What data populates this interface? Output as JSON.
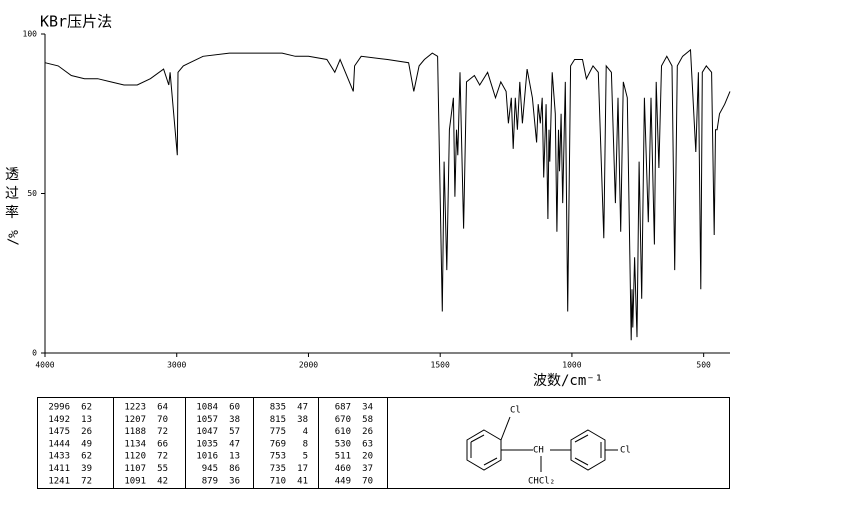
{
  "chart_data": {
    "type": "line",
    "title": "KBr压片法",
    "ylabel_chars": [
      "透",
      "过",
      "率"
    ],
    "ylabel_unit": "%/",
    "xlabel": "波数/cm⁻¹",
    "xlim": [
      4000,
      400
    ],
    "x_scale_break": 2000,
    "ylim": [
      0,
      100
    ],
    "xticks": [
      4000,
      3000,
      2000,
      1500,
      1000,
      500
    ],
    "yticks": [
      0,
      50,
      100
    ],
    "color": "#000000",
    "x": [
      4000,
      3900,
      3800,
      3700,
      3600,
      3500,
      3400,
      3300,
      3200,
      3100,
      3060,
      3050,
      2996,
      2990,
      2950,
      2900,
      2800,
      2600,
      2400,
      2200,
      2100,
      2000,
      1930,
      1900,
      1880,
      1830,
      1825,
      1800,
      1700,
      1620,
      1600,
      1580,
      1560,
      1530,
      1510,
      1492,
      1485,
      1475,
      1465,
      1450,
      1444,
      1438,
      1433,
      1425,
      1411,
      1400,
      1370,
      1350,
      1320,
      1290,
      1270,
      1250,
      1241,
      1230,
      1223,
      1215,
      1207,
      1198,
      1188,
      1170,
      1150,
      1134,
      1128,
      1120,
      1113,
      1107,
      1098,
      1091,
      1087,
      1084,
      1075,
      1063,
      1057,
      1051,
      1047,
      1041,
      1035,
      1025,
      1016,
      1005,
      990,
      960,
      945,
      920,
      900,
      879,
      870,
      850,
      835,
      825,
      815,
      805,
      790,
      775,
      772,
      769,
      762,
      753,
      745,
      735,
      725,
      710,
      700,
      687,
      680,
      670,
      660,
      640,
      620,
      610,
      600,
      580,
      550,
      530,
      520,
      511,
      505,
      490,
      470,
      460,
      455,
      449,
      440,
      420,
      400
    ],
    "values": [
      91,
      90,
      87,
      86,
      86,
      85,
      84,
      84,
      86,
      89,
      84,
      88,
      62,
      88,
      90,
      91,
      93,
      94,
      94,
      94,
      93,
      93,
      92,
      88,
      92,
      82,
      90,
      93,
      92,
      91,
      82,
      90,
      92,
      94,
      93,
      13,
      60,
      26,
      70,
      80,
      49,
      70,
      62,
      88,
      39,
      85,
      87,
      84,
      88,
      80,
      85,
      82,
      72,
      80,
      64,
      80,
      70,
      85,
      72,
      89,
      80,
      66,
      78,
      72,
      80,
      55,
      78,
      42,
      70,
      60,
      88,
      75,
      38,
      70,
      57,
      75,
      47,
      85,
      13,
      90,
      92,
      92,
      86,
      90,
      88,
      36,
      90,
      88,
      47,
      80,
      38,
      85,
      80,
      4,
      20,
      8,
      30,
      5,
      60,
      17,
      80,
      41,
      80,
      34,
      85,
      58,
      90,
      93,
      90,
      26,
      90,
      93,
      95,
      63,
      88,
      20,
      88,
      90,
      88,
      37,
      70,
      70,
      75,
      78,
      82
    ]
  },
  "peak_table": [
    [
      [
        2996,
        62
      ],
      [
        1492,
        13
      ],
      [
        1475,
        26
      ],
      [
        1444,
        49
      ],
      [
        1433,
        62
      ],
      [
        1411,
        39
      ],
      [
        1241,
        72
      ]
    ],
    [
      [
        1223,
        64
      ],
      [
        1207,
        70
      ],
      [
        1188,
        72
      ],
      [
        1134,
        66
      ],
      [
        1120,
        72
      ],
      [
        1107,
        55
      ],
      [
        1091,
        42
      ]
    ],
    [
      [
        1084,
        60
      ],
      [
        1057,
        38
      ],
      [
        1047,
        57
      ],
      [
        1035,
        47
      ],
      [
        1016,
        13
      ],
      [
        945,
        86
      ],
      [
        879,
        36
      ]
    ],
    [
      [
        835,
        47
      ],
      [
        815,
        38
      ],
      [
        775,
        4
      ],
      [
        769,
        8
      ],
      [
        753,
        5
      ],
      [
        735,
        17
      ],
      [
        710,
        41
      ]
    ],
    [
      [
        687,
        34
      ],
      [
        670,
        58
      ],
      [
        610,
        26
      ],
      [
        530,
        63
      ],
      [
        511,
        20
      ],
      [
        460,
        37
      ],
      [
        449,
        70
      ]
    ]
  ],
  "structure": {
    "cl_top": "Cl",
    "ch": "CH",
    "cl_right": "Cl",
    "chcl2": "CHCl₂"
  }
}
